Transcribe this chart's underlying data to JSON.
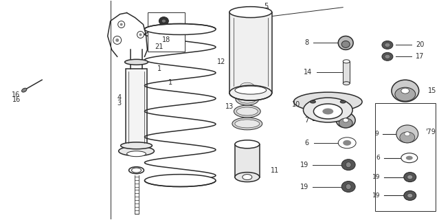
{
  "bg_color": "#ffffff",
  "line_color": "#2a2a2a",
  "fig_width": 6.39,
  "fig_height": 3.2,
  "dpi": 100
}
